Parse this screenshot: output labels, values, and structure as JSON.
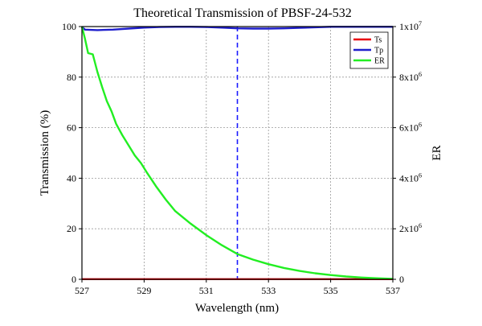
{
  "chart_data": {
    "type": "line",
    "title": "Theoretical Transmission of PBSF-24-532",
    "xlabel": "Wavelength (nm)",
    "ylabel": "Transmission (%)",
    "y2label": "ER",
    "xlim": [
      527,
      537
    ],
    "ylim": [
      0,
      100
    ],
    "y2lim": [
      0,
      10000000
    ],
    "x_ticks": [
      {
        "value": 527,
        "label": "527"
      },
      {
        "value": 529,
        "label": "529"
      },
      {
        "value": 531,
        "label": "531"
      },
      {
        "value": 533,
        "label": "533"
      },
      {
        "value": 535,
        "label": "535"
      },
      {
        "value": 537,
        "label": "537"
      }
    ],
    "y_ticks": [
      {
        "value": 0,
        "label": "0"
      },
      {
        "value": 20,
        "label": "20"
      },
      {
        "value": 40,
        "label": "40"
      },
      {
        "value": 60,
        "label": "60"
      },
      {
        "value": 80,
        "label": "80"
      },
      {
        "value": 100,
        "label": "100"
      }
    ],
    "y2_ticks": [
      {
        "value": 0,
        "base": "0",
        "exp": ""
      },
      {
        "value": 2000000,
        "base": "2x10",
        "exp": "6"
      },
      {
        "value": 4000000,
        "base": "4x10",
        "exp": "6"
      },
      {
        "value": 6000000,
        "base": "6x10",
        "exp": "6"
      },
      {
        "value": 8000000,
        "base": "8x10",
        "exp": "6"
      },
      {
        "value": 10000000,
        "base": "1x10",
        "exp": "7"
      }
    ],
    "grid": true,
    "legend_position": "top-right",
    "vertical_marker": {
      "x": 532,
      "color": "#1a1aff",
      "style": "dashed"
    },
    "series": [
      {
        "name": "Ts",
        "axis": "left",
        "color": "#e8000b",
        "x": [
          527,
          528,
          529,
          530,
          531,
          532,
          533,
          534,
          535,
          536,
          537
        ],
        "y": [
          0.05,
          0.05,
          0.05,
          0.05,
          0.05,
          0.05,
          0.05,
          0.05,
          0.05,
          0.05,
          0.05
        ]
      },
      {
        "name": "Tp",
        "axis": "left",
        "color": "#1f1fcc",
        "x": [
          527,
          527.1,
          527.5,
          528,
          528.5,
          529,
          529.5,
          530,
          530.5,
          531,
          531.5,
          532,
          532.5,
          533,
          533.5,
          534,
          534.5,
          535,
          535.5,
          536,
          536.5,
          537
        ],
        "y": [
          99.8,
          98.8,
          98.6,
          98.8,
          99.2,
          99.6,
          99.8,
          99.9,
          99.9,
          99.8,
          99.6,
          99.3,
          99.2,
          99.2,
          99.3,
          99.5,
          99.7,
          99.9,
          99.9,
          99.9,
          99.9,
          99.9
        ]
      },
      {
        "name": "ER",
        "axis": "right",
        "color": "#22ee22",
        "x": [
          527,
          527.1,
          527.2,
          527.35,
          527.5,
          527.65,
          527.8,
          527.95,
          528.1,
          528.3,
          528.5,
          528.7,
          528.9,
          529.1,
          529.4,
          529.7,
          530,
          530.5,
          531,
          531.5,
          532,
          532.5,
          533,
          533.5,
          534,
          534.5,
          535,
          535.5,
          536,
          536.5,
          537
        ],
        "y": [
          10000000,
          9500000,
          8950000,
          8900000,
          8200000,
          7600000,
          7050000,
          6650000,
          6150000,
          5700000,
          5300000,
          4900000,
          4600000,
          4200000,
          3650000,
          3150000,
          2700000,
          2200000,
          1750000,
          1350000,
          1000000,
          780000,
          600000,
          450000,
          330000,
          240000,
          170000,
          110000,
          70000,
          40000,
          20000
        ]
      }
    ]
  }
}
